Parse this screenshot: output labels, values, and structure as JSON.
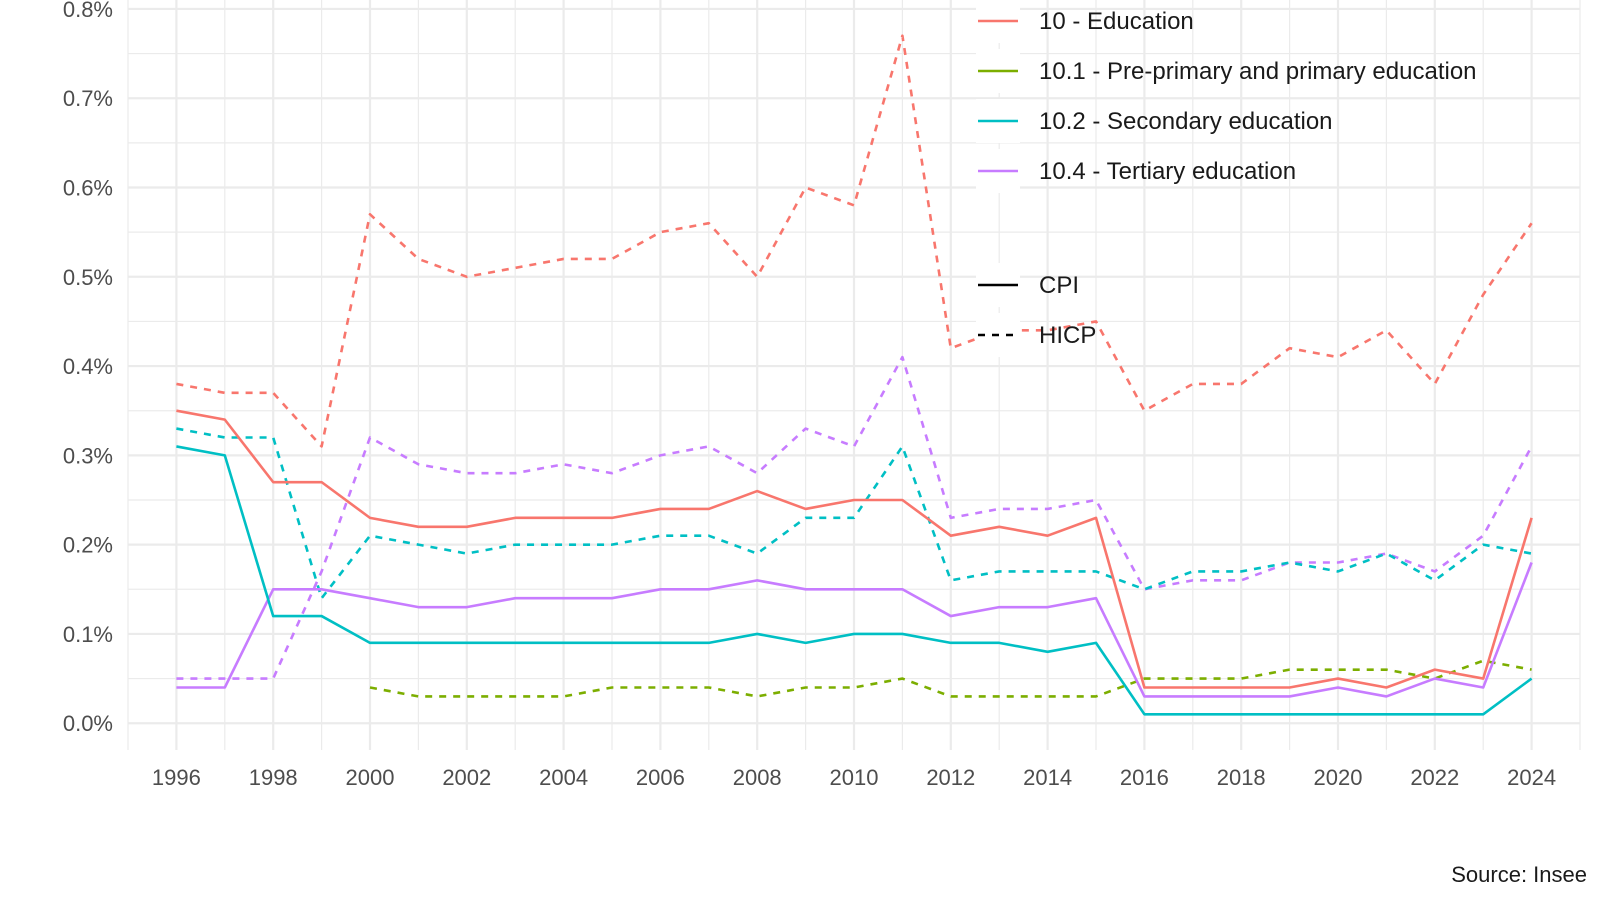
{
  "chart_data": {
    "type": "line",
    "x": [
      1996,
      1997,
      1998,
      1999,
      2000,
      2001,
      2002,
      2003,
      2004,
      2005,
      2006,
      2007,
      2008,
      2009,
      2010,
      2011,
      2012,
      2013,
      2014,
      2015,
      2016,
      2017,
      2018,
      2019,
      2020,
      2021,
      2022,
      2023,
      2024
    ],
    "xlim": [
      1995,
      2025
    ],
    "ylim": [
      -0.0003,
      0.0081
    ],
    "y_ticks": [
      0,
      0.001,
      0.002,
      0.003,
      0.004,
      0.005,
      0.006,
      0.007,
      0.008
    ],
    "y_tick_labels": [
      "0.0%",
      "0.1%",
      "0.2%",
      "0.3%",
      "0.4%",
      "0.5%",
      "0.6%",
      "0.7%",
      "0.8%"
    ],
    "x_ticks": [
      1996,
      1998,
      2000,
      2002,
      2004,
      2006,
      2008,
      2010,
      2012,
      2014,
      2016,
      2018,
      2020,
      2022,
      2024
    ],
    "x_tick_labels": [
      "1996",
      "1998",
      "2000",
      "2002",
      "2004",
      "2006",
      "2008",
      "2010",
      "2012",
      "2014",
      "2016",
      "2018",
      "2020",
      "2022",
      "2024"
    ],
    "grid": true,
    "legend_position": "top-right",
    "caption": "Source: Insee",
    "colors": {
      "education": "#F8766D",
      "pre_primary": "#7CAE00",
      "secondary": "#00BFC4",
      "tertiary": "#C77CFF",
      "grid": "#ebebeb"
    },
    "color_legend": [
      {
        "key": "education",
        "label": "10 - Education"
      },
      {
        "key": "pre_primary",
        "label": "10.1 - Pre-primary and primary education"
      },
      {
        "key": "secondary",
        "label": "10.2 - Secondary education"
      },
      {
        "key": "tertiary",
        "label": "10.4 - Tertiary education"
      }
    ],
    "linetype_legend": [
      {
        "key": "CPI",
        "label": "CPI",
        "dash": "solid"
      },
      {
        "key": "HICP",
        "label": "HICP",
        "dash": "dashed"
      }
    ],
    "series": [
      {
        "color": "education",
        "type": "HICP",
        "values": [
          0.0038,
          0.0037,
          0.0037,
          0.0031,
          0.0057,
          0.0052,
          0.005,
          0.0051,
          0.0052,
          0.0052,
          0.0055,
          0.0056,
          0.005,
          0.006,
          0.0058,
          0.0077,
          0.0042,
          0.0044,
          0.0044,
          0.0045,
          0.0035,
          0.0038,
          0.0038,
          0.0042,
          0.0041,
          0.0044,
          0.0038,
          0.0048,
          0.0056
        ]
      },
      {
        "color": "tertiary",
        "type": "HICP",
        "values": [
          0.0005,
          0.0005,
          0.0005,
          0.0017,
          0.0032,
          0.0029,
          0.0028,
          0.0028,
          0.0029,
          0.0028,
          0.003,
          0.0031,
          0.0028,
          0.0033,
          0.0031,
          0.0041,
          0.0023,
          0.0024,
          0.0024,
          0.0025,
          0.0015,
          0.0016,
          0.0016,
          0.0018,
          0.0018,
          0.0019,
          0.0017,
          0.0021,
          0.0031
        ]
      },
      {
        "color": "secondary",
        "type": "HICP",
        "values": [
          0.0033,
          0.0032,
          0.0032,
          0.0014,
          0.0021,
          0.002,
          0.0019,
          0.002,
          0.002,
          0.002,
          0.0021,
          0.0021,
          0.0019,
          0.0023,
          0.0023,
          0.0031,
          0.0016,
          0.0017,
          0.0017,
          0.0017,
          0.0015,
          0.0017,
          0.0017,
          0.0018,
          0.0017,
          0.0019,
          0.0016,
          0.002,
          0.0019
        ]
      },
      {
        "color": "pre_primary",
        "type": "HICP",
        "values": [
          null,
          null,
          null,
          null,
          0.0004,
          0.0003,
          0.0003,
          0.0003,
          0.0003,
          0.0004,
          0.0004,
          0.0004,
          0.0003,
          0.0004,
          0.0004,
          0.0005,
          0.0003,
          0.0003,
          0.0003,
          0.0003,
          0.0005,
          0.0005,
          0.0005,
          0.0006,
          0.0006,
          0.0006,
          0.0005,
          0.0007,
          0.0006
        ]
      },
      {
        "color": "education",
        "type": "CPI",
        "values": [
          0.0035,
          0.0034,
          0.0027,
          0.0027,
          0.0023,
          0.0022,
          0.0022,
          0.0023,
          0.0023,
          0.0023,
          0.0024,
          0.0024,
          0.0026,
          0.0024,
          0.0025,
          0.0025,
          0.0021,
          0.0022,
          0.0021,
          0.0023,
          0.0004,
          0.0004,
          0.0004,
          0.0004,
          0.0005,
          0.0004,
          0.0006,
          0.0005,
          0.0023
        ]
      },
      {
        "color": "tertiary",
        "type": "CPI",
        "values": [
          0.0004,
          0.0004,
          0.0015,
          0.0015,
          0.0014,
          0.0013,
          0.0013,
          0.0014,
          0.0014,
          0.0014,
          0.0015,
          0.0015,
          0.0016,
          0.0015,
          0.0015,
          0.0015,
          0.0012,
          0.0013,
          0.0013,
          0.0014,
          0.0003,
          0.0003,
          0.0003,
          0.0003,
          0.0004,
          0.0003,
          0.0005,
          0.0004,
          0.0018
        ]
      },
      {
        "color": "secondary",
        "type": "CPI",
        "values": [
          0.0031,
          0.003,
          0.0012,
          0.0012,
          0.0009,
          0.0009,
          0.0009,
          0.0009,
          0.0009,
          0.0009,
          0.0009,
          0.0009,
          0.001,
          0.0009,
          0.001,
          0.001,
          0.0009,
          0.0009,
          0.0008,
          0.0009,
          0.0001,
          0.0001,
          0.0001,
          0.0001,
          0.0001,
          0.0001,
          0.0001,
          0.0001,
          0.0005
        ]
      }
    ]
  }
}
